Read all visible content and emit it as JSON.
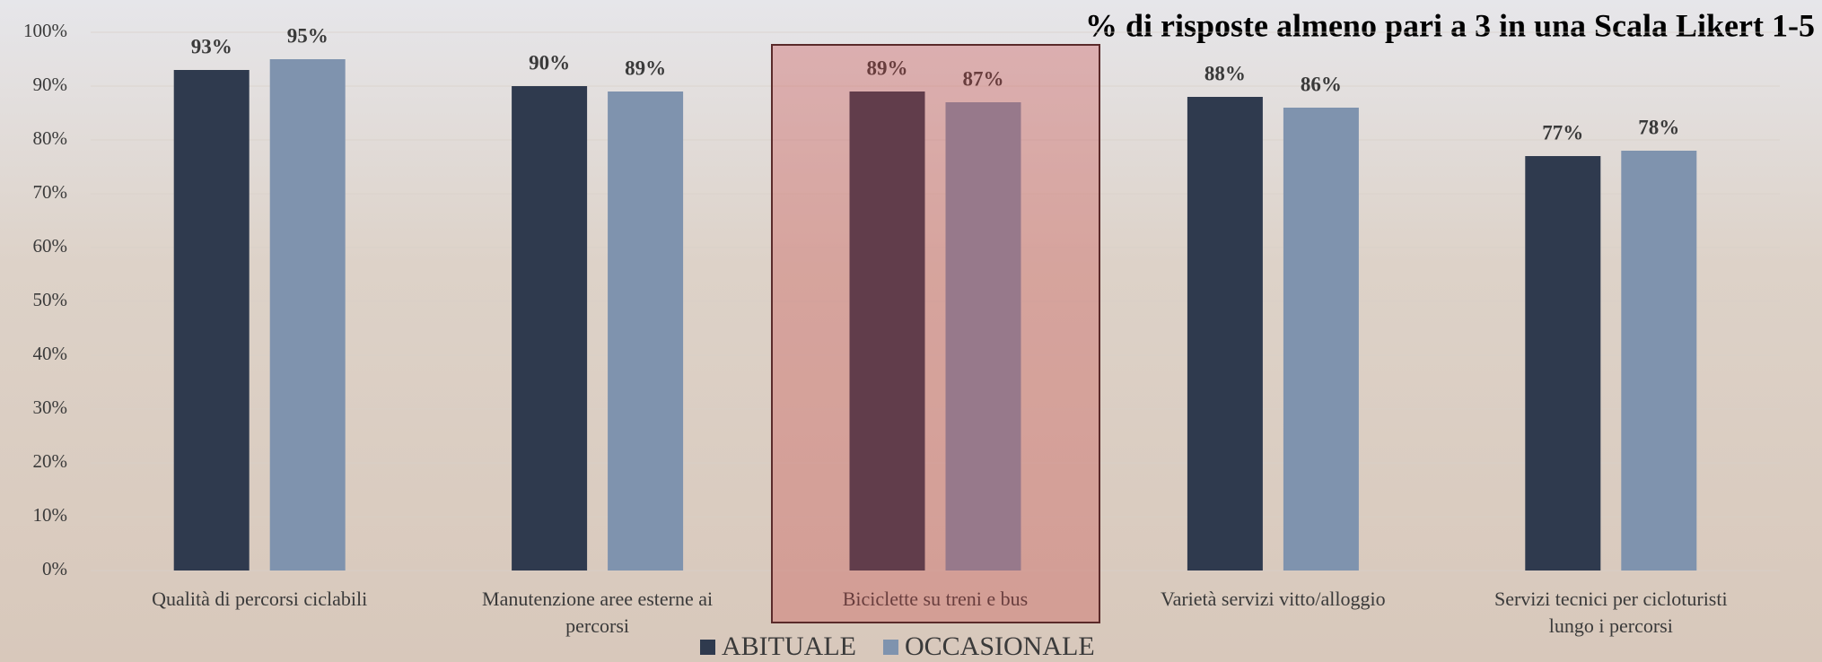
{
  "chart_data": {
    "type": "bar",
    "title": "% di risposte almeno pari a 3 in una Scala Likert 1-5",
    "categories": [
      "Qualità di percorsi ciclabili",
      "Manutenzione aree esterne ai percorsi",
      "Biciclette su treni e bus",
      "Varietà servizi vitto/alloggio",
      "Servizi tecnici per cicloturisti lungo i percorsi"
    ],
    "series": [
      {
        "name": "ABITUALE",
        "color": "#2f3a4e",
        "values": [
          93,
          90,
          89,
          88,
          77
        ],
        "value_labels": [
          "93%",
          "90%",
          "89%",
          "88%",
          "77%"
        ]
      },
      {
        "name": "OCCASIONALE",
        "color": "#7f93ae",
        "values": [
          95,
          89,
          87,
          86,
          78
        ],
        "value_labels": [
          "95%",
          "89%",
          "87%",
          "86%",
          "78%"
        ]
      }
    ],
    "ylim": [
      0,
      100
    ],
    "yticks": [
      {
        "value": 0,
        "label": "0%"
      },
      {
        "value": 10,
        "label": "10%"
      },
      {
        "value": 20,
        "label": "20%"
      },
      {
        "value": 30,
        "label": "30%"
      },
      {
        "value": 40,
        "label": "40%"
      },
      {
        "value": 50,
        "label": "50%"
      },
      {
        "value": 60,
        "label": "60%"
      },
      {
        "value": 70,
        "label": "70%"
      },
      {
        "value": 80,
        "label": "80%"
      },
      {
        "value": 90,
        "label": "90%"
      },
      {
        "value": 100,
        "label": "100%"
      }
    ],
    "grid": true,
    "legend": "bottom"
  }
}
